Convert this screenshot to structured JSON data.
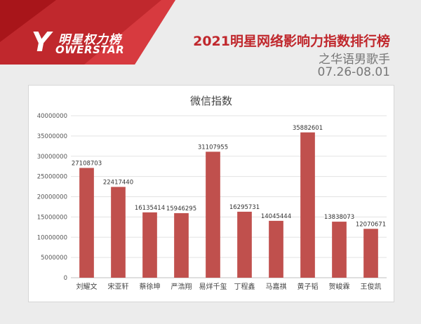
{
  "header": {
    "logo_mark": "Y",
    "logo_cn": "明星权力榜",
    "logo_en": "OWERSTAR",
    "title_line1": "2021明星网络影响力指数排行榜",
    "title_line2": "之华语男歌手",
    "title_line3": "07.26-08.01"
  },
  "colors": {
    "brand_red": "#c0282d",
    "bar_fill": "#c0504d",
    "background": "#ececec"
  },
  "chart_data": {
    "type": "bar",
    "title": "微信指数",
    "xlabel": "",
    "ylabel": "",
    "categories": [
      "刘耀文",
      "宋亚轩",
      "蔡徐坤",
      "严浩翔",
      "易烊千玺",
      "丁程鑫",
      "马嘉祺",
      "黄子韬",
      "贺峻霖",
      "王俊凯"
    ],
    "values": [
      27108703,
      22417440,
      16135414,
      15946295,
      31107955,
      16295731,
      14045444,
      35882601,
      13838073,
      12070671
    ],
    "ylim": [
      0,
      40000000
    ],
    "yticks": [
      0,
      5000000,
      10000000,
      15000000,
      20000000,
      25000000,
      30000000,
      35000000,
      40000000
    ],
    "grid": true,
    "legend": "none"
  }
}
